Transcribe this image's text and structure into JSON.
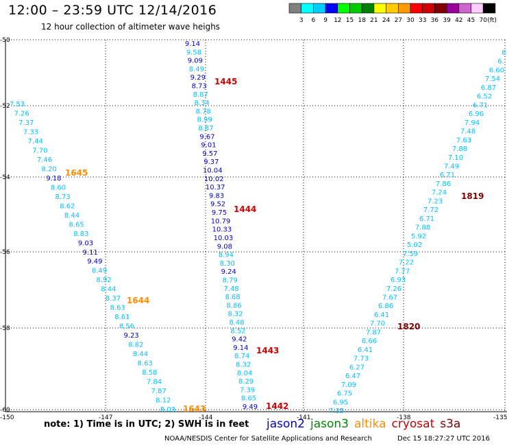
{
  "header": {
    "title": "12:00 – 23:59 UTC 12/14/2016",
    "subtitle": "12 hour collection of altimeter wave heighs"
  },
  "colorbar": {
    "colors": [
      "#808080",
      "#00ffff",
      "#00ccff",
      "#0000ff",
      "#00ff00",
      "#00cc00",
      "#008000",
      "#ffff00",
      "#ffcc00",
      "#ff9900",
      "#ff0000",
      "#cc0000",
      "#800000",
      "#990099",
      "#cc66cc",
      "#ffccff",
      "#000000"
    ],
    "labels": [
      "3",
      "6",
      "9",
      "12",
      "15",
      "18",
      "21",
      "24",
      "27",
      "30",
      "33",
      "36",
      "39",
      "42",
      "45",
      "70"
    ],
    "unit": "(ft)"
  },
  "axes": {
    "lon_ticks": [
      "-150",
      "-147",
      "-144",
      "-141",
      "-138",
      "-135"
    ],
    "lat_ticks": [
      "-50",
      "-52",
      "-54",
      "-56",
      "-58",
      "-60"
    ]
  },
  "colors": {
    "jason2": "#0000cc",
    "jason3": "#008800",
    "altika": "#ff8c00",
    "cryosat": "#cc0000",
    "s3a": "#800000",
    "swh_light": "#00bfff"
  },
  "tracks": [
    {
      "id": "track_1645_1644_1643",
      "values": [
        "7.53",
        "7.26",
        "7.37",
        "7.33",
        "7.44",
        "7.70",
        "7.46",
        "8.20",
        "9.18",
        "8.60",
        "8.73",
        "8.62",
        "8.44",
        "8.65",
        "8.83",
        "9.03",
        "9.11",
        "9.49",
        "8.49",
        "8.92",
        "8.44",
        "8.37",
        "8.63",
        "8.61",
        "8.56",
        "9.23",
        "8.82",
        "8.44",
        "8.63",
        "8.58",
        "7.84",
        "7.87",
        "8.12",
        "8.03"
      ],
      "colors": [
        "l",
        "l",
        "l",
        "l",
        "l",
        "l",
        "l",
        "l",
        "d",
        "l",
        "l",
        "l",
        "l",
        "l",
        "l",
        "d",
        "d",
        "d",
        "l",
        "l",
        "l",
        "l",
        "l",
        "l",
        "l",
        "d",
        "l",
        "l",
        "l",
        "l",
        "l",
        "l",
        "l",
        "l"
      ]
    },
    {
      "id": "track_1445_1444_1443_1442",
      "values": [
        "9.14",
        "9.58",
        "9.09",
        "8.49",
        "9.29",
        "8.73",
        "8.87",
        "8.34",
        "8.78",
        "8.99",
        "8.87",
        "9.67",
        "9.01",
        "9.57",
        "9.37",
        "10.04",
        "10.02",
        "10.37",
        "9.83",
        "9.52",
        "9.75",
        "10.79",
        "10.33",
        "10.03",
        "9.08",
        "8.94",
        "8.30",
        "9.24",
        "8.79",
        "7.48",
        "8.68",
        "8.86",
        "8.32",
        "8.48",
        "8.52",
        "9.42",
        "9.14",
        "8.74",
        "8.32",
        "8.04",
        "8.29",
        "7.39",
        "8.65",
        "9.49"
      ],
      "colors": [
        "d",
        "l",
        "d",
        "l",
        "d",
        "d",
        "l",
        "l",
        "l",
        "l",
        "l",
        "d",
        "d",
        "d",
        "d",
        "d",
        "d",
        "d",
        "d",
        "d",
        "d",
        "d",
        "d",
        "d",
        "d",
        "l",
        "l",
        "d",
        "l",
        "l",
        "l",
        "l",
        "l",
        "l",
        "l",
        "d",
        "d",
        "l",
        "l",
        "l",
        "l",
        "l",
        "l",
        "d"
      ]
    },
    {
      "id": "track_1820_1819",
      "values": [
        "6.",
        "6.",
        "6.60",
        "7.54",
        "6.87",
        "6.52",
        "6.71",
        "6.96",
        "7.94",
        "7.48",
        "7.63",
        "7.88",
        "7.10",
        "7.49",
        "6.71",
        "7.86",
        "7.24",
        "7.23",
        "7.72",
        "6.71",
        "7.88",
        "5.92",
        "5.02",
        "7.59",
        "7.22",
        "7.77",
        "6.93",
        "7.26",
        "7.67",
        "6.86",
        "6.41",
        "7.70",
        "7.87",
        "6.66",
        "6.41",
        "7.73",
        "6.27",
        "6.47",
        "7.09",
        "6.75",
        "6.95",
        "7.35"
      ],
      "colors": [
        "l",
        "l",
        "l",
        "l",
        "l",
        "l",
        "l",
        "l",
        "l",
        "l",
        "l",
        "l",
        "l",
        "l",
        "l",
        "l",
        "l",
        "l",
        "l",
        "l",
        "l",
        "l",
        "l",
        "l",
        "l",
        "l",
        "l",
        "l",
        "l",
        "l",
        "l",
        "l",
        "l",
        "l",
        "l",
        "l",
        "l",
        "l",
        "l",
        "l",
        "l",
        "l"
      ]
    }
  ],
  "pass_labels": [
    {
      "text": "1445",
      "sat": "cryosat"
    },
    {
      "text": "1444",
      "sat": "cryosat"
    },
    {
      "text": "1443",
      "sat": "cryosat"
    },
    {
      "text": "1442",
      "sat": "cryosat"
    },
    {
      "text": "1645",
      "sat": "altika"
    },
    {
      "text": "1644",
      "sat": "altika"
    },
    {
      "text": "1643",
      "sat": "altika"
    },
    {
      "text": "1820",
      "sat": "s3a"
    },
    {
      "text": "1819",
      "sat": "s3a"
    }
  ],
  "footer": {
    "note": "note:  1) Time is in UTC;  2) SWH is in feet",
    "legend": [
      {
        "name": "jason2",
        "color": "#0000cc"
      },
      {
        "name": "jason3",
        "color": "#008800"
      },
      {
        "name": "altika",
        "color": "#ff8c00"
      },
      {
        "name": "cryosat",
        "color": "#cc0000"
      },
      {
        "name": "s3a",
        "color": "#800000"
      }
    ],
    "credit": "NOAA/NESDIS Center for Satellite Applications and Research",
    "timestamp": "Dec 15 18:27:27 UTC 2016"
  }
}
